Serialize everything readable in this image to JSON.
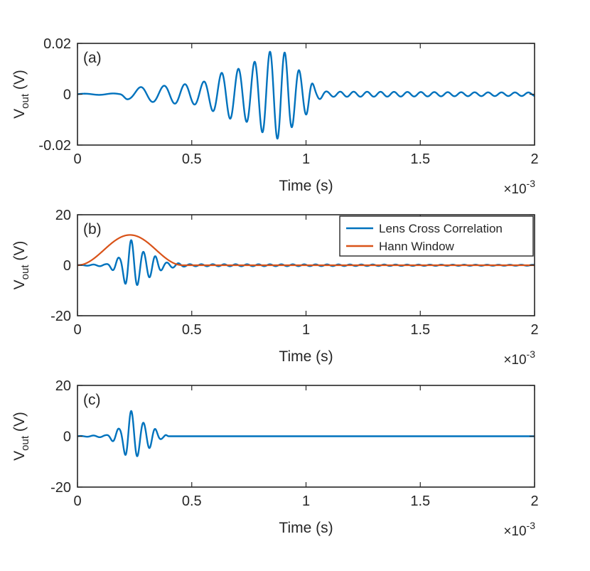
{
  "colors": {
    "blue": "#0072BD",
    "orange": "#D95319",
    "axis": "#262626"
  },
  "chart_data": [
    {
      "type": "line",
      "panel_label": "(a)",
      "xlabel": "Time (s)",
      "ylabel_main": "V",
      "ylabel_sub": "out",
      "ylabel_unit": "(V)",
      "xlim": [
        0,
        0.002
      ],
      "ylim": [
        -0.02,
        0.02
      ],
      "xticks": [
        0,
        0.0005,
        0.001,
        0.0015,
        0.002
      ],
      "xtick_labels": [
        "0",
        "0.5",
        "1",
        "1.5",
        "2"
      ],
      "yticks": [
        -0.02,
        0,
        0.02
      ],
      "ytick_labels": [
        "-0.02",
        "0",
        "0.02"
      ],
      "x_multiplier_base": "×10",
      "x_multiplier_exp": "-3",
      "series": [
        {
          "color": "#0072BD",
          "envelope": {
            "x": [
              0,
              0.00018,
              0.00022,
              0.0003,
              0.0005,
              0.0007,
              0.00088,
              0.001,
              0.00105,
              0.0011,
              0.002
            ],
            "y": [
              0.0002,
              0.0003,
              0.002,
              0.003,
              0.004,
              0.01,
              0.0175,
              0.008,
              0.002,
              0.001,
              0.0007
            ]
          },
          "freq": {
            "x": [
              0,
              0.0002,
              0.0005,
              0.00088,
              0.0011,
              0.002
            ],
            "y": [
              8000,
              8000,
              12000,
              15500,
              17000,
              17000
            ]
          }
        }
      ]
    },
    {
      "type": "line",
      "panel_label": "(b)",
      "xlabel": "Time (s)",
      "ylabel_main": "V",
      "ylabel_sub": "out",
      "ylabel_unit": "(V)",
      "xlim": [
        0,
        0.002
      ],
      "ylim": [
        -20,
        20
      ],
      "xticks": [
        0,
        0.0005,
        0.001,
        0.0015,
        0.002
      ],
      "xtick_labels": [
        "0",
        "0.5",
        "1",
        "1.5",
        "2"
      ],
      "yticks": [
        -20,
        0,
        20
      ],
      "ytick_labels": [
        "-20",
        "0",
        "20"
      ],
      "x_multiplier_base": "×10",
      "x_multiplier_exp": "-3",
      "legend": {
        "position": "top-right"
      },
      "series": [
        {
          "name": "Lens Cross Correlation",
          "color": "#0072BD",
          "envelope": {
            "x": [
              0,
              0.00012,
              0.00018,
              0.00023,
              0.0003,
              0.0004,
              0.0005,
              0.002
            ],
            "y": [
              0.1,
              0.4,
              3,
              10,
              5,
              1,
              0.4,
              0.2
            ]
          },
          "freq": {
            "x": [
              0,
              0.0002,
              0.0004,
              0.002
            ],
            "y": [
              18000,
              18000,
              20000,
              20000
            ]
          }
        },
        {
          "name": "Hann Window",
          "color": "#D95319",
          "window": {
            "start": 0,
            "end": 0.00046,
            "peak": 12
          }
        }
      ]
    },
    {
      "type": "line",
      "panel_label": "(c)",
      "xlabel": "Time (s)",
      "ylabel_main": "V",
      "ylabel_sub": "out",
      "ylabel_unit": "(V)",
      "xlim": [
        0,
        0.002
      ],
      "ylim": [
        -20,
        20
      ],
      "xticks": [
        0,
        0.0005,
        0.001,
        0.0015,
        0.002
      ],
      "xtick_labels": [
        "0",
        "0.5",
        "1",
        "1.5",
        "2"
      ],
      "yticks": [
        -20,
        0,
        20
      ],
      "ytick_labels": [
        "-20",
        "0",
        "20"
      ],
      "x_multiplier_base": "×10",
      "x_multiplier_exp": "-3",
      "series": [
        {
          "color": "#0072BD",
          "envelope": {
            "x": [
              0,
              0.00012,
              0.00018,
              0.00023,
              0.0003,
              0.00038,
              0.0004,
              0.002
            ],
            "y": [
              0.1,
              0.4,
              3,
              10,
              5,
              0.8,
              0,
              0
            ]
          },
          "freq": {
            "x": [
              0,
              0.0002,
              0.0004,
              0.002
            ],
            "y": [
              18000,
              18000,
              20000,
              20000
            ]
          }
        }
      ]
    }
  ]
}
